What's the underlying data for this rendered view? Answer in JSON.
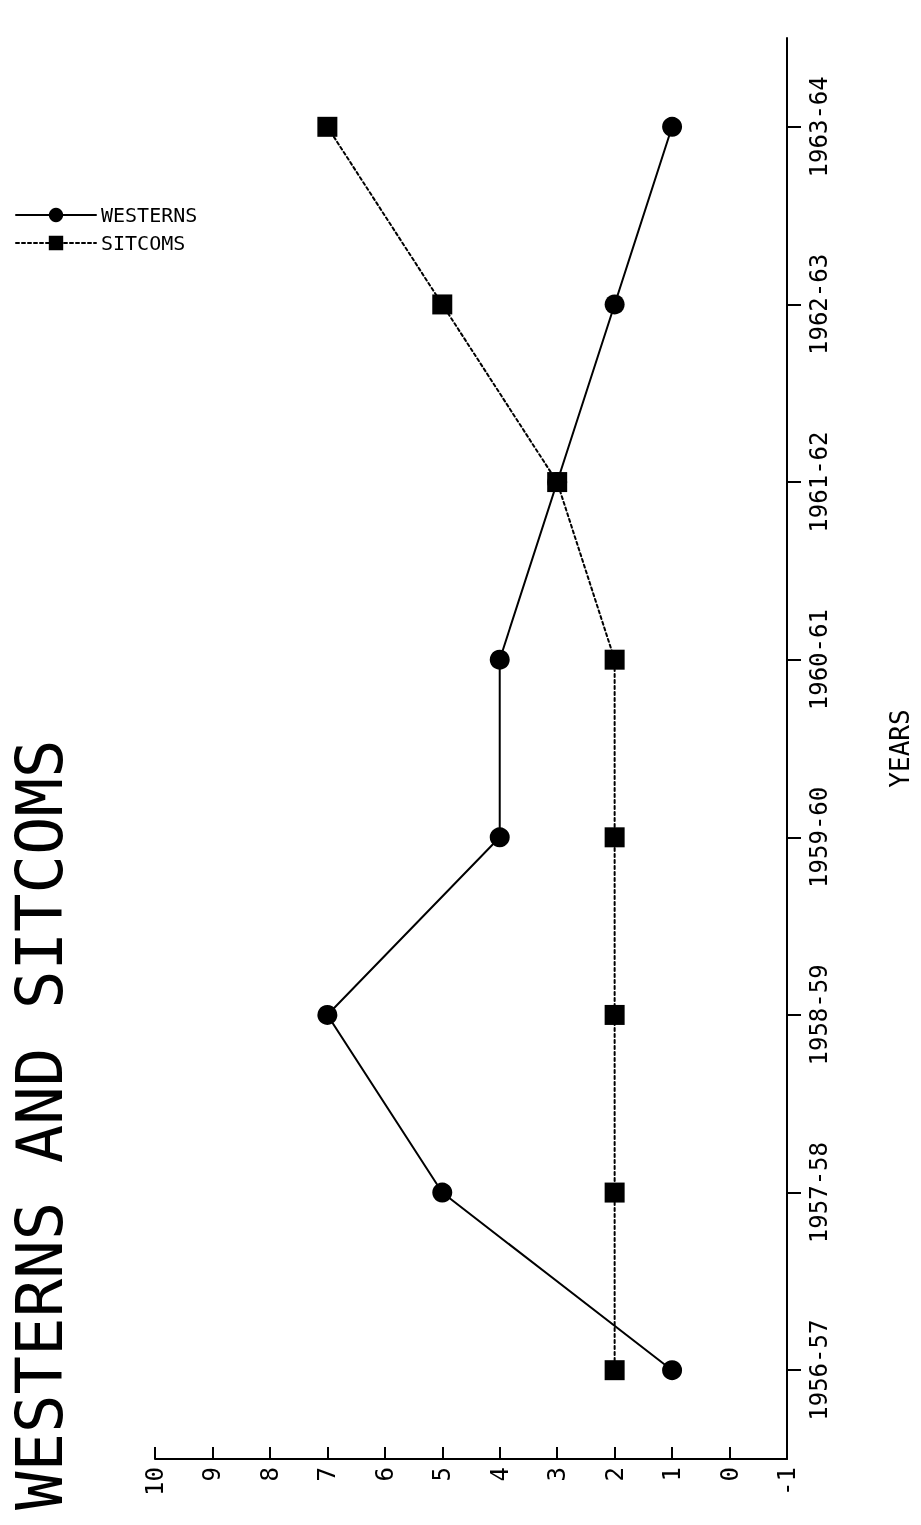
{
  "chart_data": {
    "type": "line",
    "orientation": "horizontal",
    "title": "WESTERNS AND SITCOMS",
    "ylabel": "YEARS",
    "categories": [
      "1963-64",
      "1962-63",
      "1961-62",
      "1960-61",
      "1959-60",
      "1958-59",
      "1957-58",
      "1956-57"
    ],
    "series": [
      {
        "name": "WESTERNS",
        "color": "#000000",
        "marker": "circle",
        "line_style": "solid",
        "values": [
          1,
          2,
          3,
          4,
          4,
          7,
          5,
          1
        ]
      },
      {
        "name": "SITCOMS",
        "color": "#000000",
        "marker": "square",
        "line_style": "dotted",
        "values": [
          7,
          5,
          3,
          2,
          2,
          2,
          2,
          2
        ]
      }
    ],
    "xlim": [
      10,
      -1
    ],
    "xticks": [
      10,
      9,
      8,
      7,
      6,
      5,
      4,
      3,
      2,
      1,
      0,
      -1
    ],
    "grid": false,
    "legend": "top left"
  }
}
